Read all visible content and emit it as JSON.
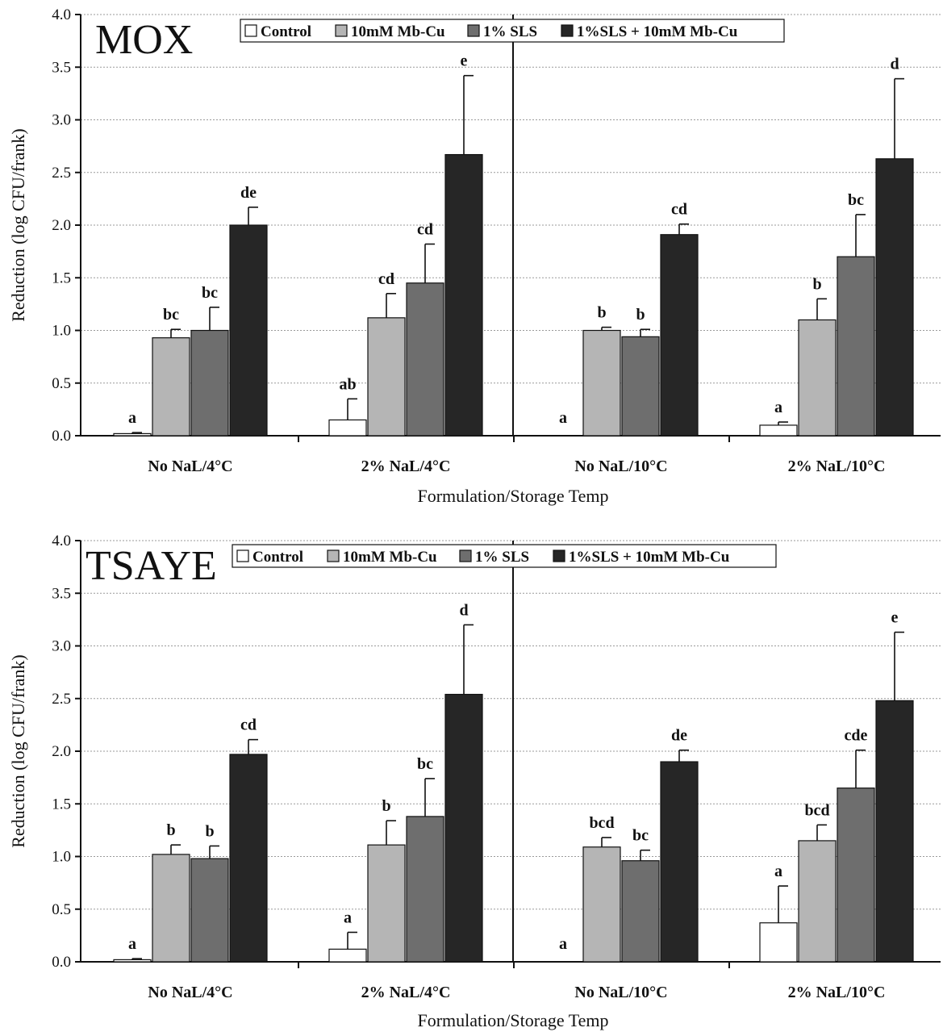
{
  "chart_data": [
    {
      "type": "bar",
      "title": "MOX",
      "xlabel": "Formulation/Storage Temp",
      "ylabel": "Reduction (log CFU/frank)",
      "ylim": [
        0,
        4.0
      ],
      "yticks": [
        "0.0",
        "0.5",
        "1.0",
        "1.5",
        "2.0",
        "2.5",
        "3.0",
        "3.5",
        "4.0"
      ],
      "categories": [
        "No NaL/4°C",
        "2% NaL/4°C",
        "No NaL/10°C",
        "2% NaL/10°C"
      ],
      "grid": true,
      "legend_position": "top",
      "series": [
        {
          "name": "Control",
          "color": "#ffffff",
          "values": [
            0.02,
            0.15,
            0.0,
            0.1
          ],
          "errors": [
            0.01,
            0.2,
            0.0,
            0.03
          ],
          "letters": [
            "a",
            "ab",
            "a",
            "a"
          ]
        },
        {
          "name": "10mM Mb-Cu",
          "color": "#b5b5b5",
          "values": [
            0.93,
            1.12,
            1.0,
            1.1
          ],
          "errors": [
            0.08,
            0.23,
            0.03,
            0.2
          ],
          "letters": [
            "bc",
            "cd",
            "b",
            "b"
          ]
        },
        {
          "name": "1% SLS",
          "color": "#6e6e6e",
          "values": [
            1.0,
            1.45,
            0.94,
            1.7
          ],
          "errors": [
            0.22,
            0.37,
            0.07,
            0.4
          ],
          "letters": [
            "bc",
            "cd",
            "b",
            "bc"
          ]
        },
        {
          "name": "1%SLS + 10mM Mb-Cu",
          "color": "#262626",
          "values": [
            2.0,
            2.67,
            1.91,
            2.63
          ],
          "errors": [
            0.17,
            0.75,
            0.1,
            0.76
          ],
          "letters": [
            "de",
            "e",
            "cd",
            "d"
          ]
        }
      ]
    },
    {
      "type": "bar",
      "title": "TSAYE",
      "xlabel": "Formulation/Storage Temp",
      "ylabel": "Reduction (log CFU/frank)",
      "ylim": [
        0,
        4.0
      ],
      "yticks": [
        "0.0",
        "0.5",
        "1.0",
        "1.5",
        "2.0",
        "2.5",
        "3.0",
        "3.5",
        "4.0"
      ],
      "categories": [
        "No NaL/4°C",
        "2% NaL/4°C",
        "No NaL/10°C",
        "2% NaL/10°C"
      ],
      "grid": true,
      "legend_position": "top",
      "series": [
        {
          "name": "Control",
          "color": "#ffffff",
          "values": [
            0.02,
            0.12,
            0.0,
            0.37
          ],
          "errors": [
            0.01,
            0.16,
            0.0,
            0.35
          ],
          "letters": [
            "a",
            "a",
            "a",
            "a"
          ]
        },
        {
          "name": "10mM Mb-Cu",
          "color": "#b5b5b5",
          "values": [
            1.02,
            1.11,
            1.09,
            1.15
          ],
          "errors": [
            0.09,
            0.23,
            0.09,
            0.15
          ],
          "letters": [
            "b",
            "b",
            "bcd",
            "bcd"
          ]
        },
        {
          "name": "1% SLS",
          "color": "#6e6e6e",
          "values": [
            0.98,
            1.38,
            0.96,
            1.65
          ],
          "errors": [
            0.12,
            0.36,
            0.1,
            0.36
          ],
          "letters": [
            "b",
            "bc",
            "bc",
            "cde"
          ]
        },
        {
          "name": "1%SLS + 10mM Mb-Cu",
          "color": "#262626",
          "values": [
            1.97,
            2.54,
            1.9,
            2.48
          ],
          "errors": [
            0.14,
            0.66,
            0.11,
            0.65
          ],
          "letters": [
            "cd",
            "d",
            "de",
            "e"
          ]
        }
      ]
    }
  ]
}
